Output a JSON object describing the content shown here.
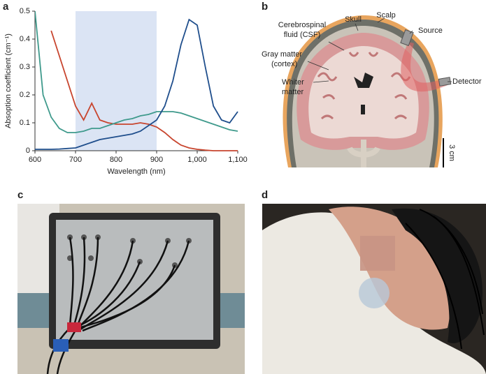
{
  "panel_labels": [
    "a",
    "b",
    "c",
    "d"
  ],
  "chart_data": {
    "type": "line",
    "xlabel": "Wavelength (nm)",
    "ylabel": "Absoption coefficient (cm⁻¹)",
    "x": [
      600,
      620,
      640,
      660,
      680,
      700,
      720,
      740,
      760,
      780,
      800,
      820,
      840,
      860,
      880,
      900,
      920,
      940,
      960,
      980,
      1000,
      1020,
      1040,
      1060,
      1080,
      1100
    ],
    "series": [
      {
        "color": "#c8452e",
        "values": [
          null,
          null,
          0.43,
          0.34,
          0.25,
          0.16,
          0.11,
          0.17,
          0.11,
          0.1,
          0.095,
          0.095,
          0.095,
          0.1,
          0.095,
          0.085,
          0.065,
          0.04,
          0.02,
          0.01,
          0.005,
          0.002,
          0,
          0,
          0,
          0
        ]
      },
      {
        "color": "#3f9a8c",
        "values": [
          0.5,
          0.2,
          0.12,
          0.08,
          0.065,
          0.065,
          0.07,
          0.08,
          0.08,
          0.09,
          0.1,
          0.11,
          0.115,
          0.125,
          0.13,
          0.14,
          0.14,
          0.14,
          0.135,
          0.125,
          0.115,
          0.105,
          0.095,
          0.085,
          0.075,
          0.07
        ]
      },
      {
        "color": "#1f4e8c",
        "values": [
          0.005,
          0.005,
          0.005,
          0.006,
          0.008,
          0.01,
          0.02,
          0.03,
          0.04,
          0.045,
          0.05,
          0.055,
          0.06,
          0.07,
          0.09,
          0.11,
          0.16,
          0.25,
          0.38,
          0.47,
          0.45,
          0.3,
          0.16,
          0.11,
          0.1,
          0.14
        ]
      }
    ],
    "xlim": [
      600,
      1100
    ],
    "ylim": [
      0,
      0.5
    ],
    "xticks": [
      600,
      700,
      800,
      900,
      {
        "value": 1000,
        "label": "1,000"
      },
      {
        "value": 1100,
        "label": "1,100"
      }
    ],
    "yticks": [
      0,
      0.1,
      0.2,
      0.3,
      0.4,
      0.5
    ],
    "shaded_region": {
      "xlim": [
        700,
        900
      ],
      "color": "#dbe4f4"
    }
  },
  "diagram": {
    "csf": [
      "Cerebrospinal",
      "fluid (CSF)"
    ],
    "skull": "Skull",
    "scalp": "Scalp",
    "source": "Source",
    "gray_matter": [
      "Gray matter",
      "(cortex)"
    ],
    "white_matter": [
      "Whiter",
      "matter"
    ],
    "detector": "Detector",
    "scale": "3 cm"
  }
}
